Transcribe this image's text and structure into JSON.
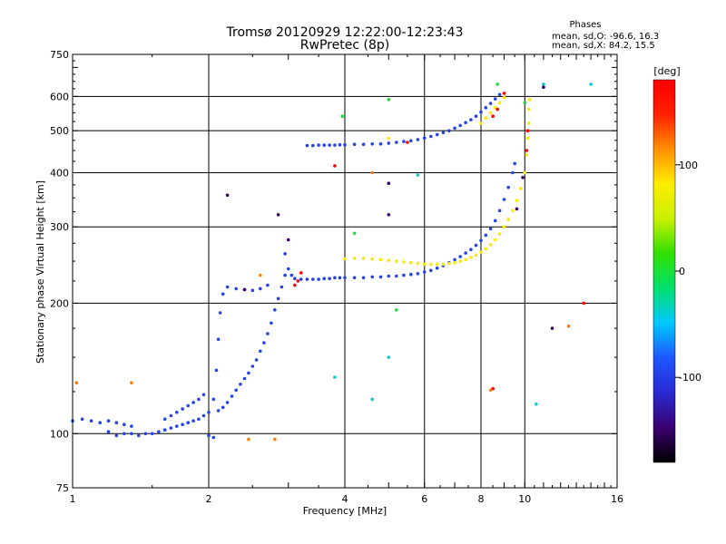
{
  "chart_data": {
    "type": "scatter",
    "title": "Tromsø 20120929 12:22:00-12:23:43",
    "subtitle": "RwPretec (8p)",
    "xlabel": "Frequency [MHz]",
    "ylabel": "Stationary phase Virtual Height [km]",
    "x_scale": "log",
    "y_scale": "log",
    "xlim": [
      1,
      16
    ],
    "ylim": [
      75,
      750
    ],
    "x_ticks": [
      1,
      2,
      4,
      6,
      8,
      10,
      16
    ],
    "x_tick_labels": [
      "1",
      "2",
      "4",
      "6",
      "8",
      "10",
      "16"
    ],
    "y_ticks": [
      75,
      100,
      200,
      300,
      400,
      500,
      600,
      750
    ],
    "y_tick_labels": [
      "75",
      "100",
      "200",
      "300",
      "400",
      "500",
      "600",
      "750"
    ],
    "grid": true,
    "phase_stats": {
      "title": "Phases",
      "line_o": "mean, sd,O: -96.6, 16.3",
      "line_x": "mean, sd,X:  84.2, 15.5"
    },
    "colorbar": {
      "label": "[deg]",
      "range": [
        -180,
        180
      ],
      "ticks": [
        100,
        0,
        -100
      ],
      "tick_labels": [
        "100",
        "0",
        "-100"
      ],
      "colormap": [
        "#000000",
        "#3a0070",
        "#2a2ad0",
        "#1e56ff",
        "#00c8ff",
        "#00e070",
        "#30e000",
        "#c8f000",
        "#ffee00",
        "#ff9000",
        "#ff2000",
        "#ff0000"
      ]
    },
    "series": [
      {
        "phase": -95,
        "points": [
          [
            1.0,
            107
          ],
          [
            1.05,
            108
          ],
          [
            1.1,
            107
          ],
          [
            1.15,
            106
          ],
          [
            1.2,
            107
          ],
          [
            1.25,
            106
          ],
          [
            1.3,
            105
          ],
          [
            1.35,
            104
          ],
          [
            1.2,
            101
          ],
          [
            1.25,
            99
          ],
          [
            1.3,
            100
          ],
          [
            1.35,
            100
          ],
          [
            1.4,
            99
          ],
          [
            1.45,
            100
          ],
          [
            1.5,
            100
          ],
          [
            1.55,
            101
          ],
          [
            1.6,
            102
          ],
          [
            1.65,
            103
          ],
          [
            1.7,
            104
          ],
          [
            1.75,
            105
          ],
          [
            1.8,
            106
          ],
          [
            1.85,
            107
          ],
          [
            1.9,
            108
          ],
          [
            1.95,
            110
          ],
          [
            2.0,
            112
          ],
          [
            2.05,
            120
          ],
          [
            2.08,
            140
          ],
          [
            2.1,
            165
          ],
          [
            2.12,
            190
          ],
          [
            2.15,
            210
          ],
          [
            2.2,
            218
          ],
          [
            2.3,
            216
          ],
          [
            2.4,
            215
          ],
          [
            2.5,
            214
          ],
          [
            2.6,
            216
          ],
          [
            2.7,
            220
          ],
          [
            1.6,
            108
          ],
          [
            1.65,
            110
          ],
          [
            1.7,
            112
          ],
          [
            1.75,
            114
          ],
          [
            1.8,
            116
          ],
          [
            1.85,
            118
          ],
          [
            1.9,
            120
          ],
          [
            1.95,
            123
          ],
          [
            2.0,
            99
          ],
          [
            2.05,
            98
          ],
          [
            2.1,
            113
          ],
          [
            2.15,
            115
          ],
          [
            2.2,
            118
          ],
          [
            2.25,
            122
          ],
          [
            2.3,
            126
          ],
          [
            2.35,
            130
          ],
          [
            2.4,
            134
          ],
          [
            2.45,
            138
          ],
          [
            2.5,
            143
          ],
          [
            2.55,
            148
          ],
          [
            2.6,
            155
          ],
          [
            2.65,
            162
          ],
          [
            2.7,
            170
          ],
          [
            2.75,
            180
          ],
          [
            2.8,
            193
          ],
          [
            2.85,
            205
          ],
          [
            2.9,
            218
          ],
          [
            2.95,
            232
          ],
          [
            2.95,
            260
          ],
          [
            3.0,
            240
          ],
          [
            3.05,
            232
          ],
          [
            3.1,
            228
          ],
          [
            3.2,
            227
          ],
          [
            3.3,
            227
          ],
          [
            3.4,
            227
          ],
          [
            3.5,
            227
          ],
          [
            3.6,
            228
          ],
          [
            3.7,
            228
          ],
          [
            3.8,
            229
          ],
          [
            3.9,
            229
          ],
          [
            4.0,
            229
          ],
          [
            4.2,
            229
          ],
          [
            4.4,
            229
          ],
          [
            4.6,
            230
          ],
          [
            4.8,
            230
          ],
          [
            5.0,
            231
          ],
          [
            5.2,
            231
          ],
          [
            5.4,
            232
          ],
          [
            5.6,
            233
          ],
          [
            5.8,
            234
          ],
          [
            6.0,
            236
          ],
          [
            6.2,
            238
          ],
          [
            6.4,
            241
          ],
          [
            6.6,
            244
          ],
          [
            6.8,
            248
          ],
          [
            7.0,
            252
          ],
          [
            7.2,
            256
          ],
          [
            7.4,
            261
          ],
          [
            7.6,
            266
          ],
          [
            7.8,
            272
          ],
          [
            8.0,
            279
          ],
          [
            8.2,
            287
          ],
          [
            8.4,
            297
          ],
          [
            8.6,
            310
          ],
          [
            8.8,
            327
          ],
          [
            9.0,
            347
          ],
          [
            9.2,
            370
          ],
          [
            9.4,
            400
          ],
          [
            9.5,
            420
          ],
          [
            3.3,
            462
          ],
          [
            3.4,
            462
          ],
          [
            3.5,
            463
          ],
          [
            3.6,
            463
          ],
          [
            3.7,
            463
          ],
          [
            3.8,
            463
          ],
          [
            3.9,
            464
          ],
          [
            4.0,
            464
          ],
          [
            4.2,
            465
          ],
          [
            4.4,
            465
          ],
          [
            4.6,
            466
          ],
          [
            4.8,
            466
          ],
          [
            5.0,
            468
          ],
          [
            5.2,
            470
          ],
          [
            5.4,
            472
          ],
          [
            5.6,
            474
          ],
          [
            5.8,
            477
          ],
          [
            6.0,
            481
          ],
          [
            6.2,
            485
          ],
          [
            6.4,
            490
          ],
          [
            6.6,
            495
          ],
          [
            6.8,
            500
          ],
          [
            7.0,
            507
          ],
          [
            7.2,
            514
          ],
          [
            7.4,
            522
          ],
          [
            7.6,
            530
          ],
          [
            7.8,
            540
          ],
          [
            8.0,
            552
          ],
          [
            8.2,
            565
          ],
          [
            8.4,
            578
          ],
          [
            8.6,
            592
          ],
          [
            8.8,
            606
          ]
        ]
      },
      {
        "phase": 84,
        "points": [
          [
            4.0,
            253
          ],
          [
            4.2,
            254
          ],
          [
            4.4,
            254
          ],
          [
            4.6,
            253
          ],
          [
            4.8,
            252
          ],
          [
            5.0,
            251
          ],
          [
            5.2,
            250
          ],
          [
            5.4,
            249
          ],
          [
            5.6,
            248
          ],
          [
            5.8,
            247
          ],
          [
            6.0,
            246
          ],
          [
            6.2,
            246
          ],
          [
            6.4,
            246
          ],
          [
            6.6,
            246
          ],
          [
            6.8,
            247
          ],
          [
            7.0,
            248
          ],
          [
            7.2,
            250
          ],
          [
            7.4,
            252
          ],
          [
            7.6,
            255
          ],
          [
            7.8,
            258
          ],
          [
            8.0,
            262
          ],
          [
            8.2,
            267
          ],
          [
            8.4,
            273
          ],
          [
            8.6,
            280
          ],
          [
            8.8,
            289
          ],
          [
            9.0,
            300
          ],
          [
            9.2,
            312
          ],
          [
            9.4,
            327
          ],
          [
            9.6,
            345
          ],
          [
            9.8,
            368
          ],
          [
            10.0,
            400
          ],
          [
            10.1,
            440
          ],
          [
            10.15,
            480
          ],
          [
            10.2,
            520
          ],
          [
            10.2,
            560
          ],
          [
            10.25,
            590
          ],
          [
            8.0,
            520
          ],
          [
            8.2,
            535
          ],
          [
            8.4,
            550
          ],
          [
            8.6,
            565
          ],
          [
            8.8,
            580
          ],
          [
            9.0,
            596
          ],
          [
            5.0,
            480
          ],
          [
            5.5,
            470
          ]
        ]
      },
      {
        "phase": 178,
        "points": [
          [
            3.1,
            220
          ],
          [
            3.15,
            225
          ],
          [
            3.2,
            235
          ],
          [
            10.1,
            450
          ],
          [
            10.15,
            500
          ],
          [
            8.5,
            540
          ],
          [
            8.7,
            560
          ],
          [
            9.0,
            610
          ],
          [
            13.5,
            200
          ],
          [
            8.5,
            127
          ],
          [
            3.8,
            415
          ],
          [
            5.5,
            470
          ]
        ]
      },
      {
        "phase": 120,
        "points": [
          [
            1.02,
            131
          ],
          [
            1.35,
            131
          ],
          [
            2.45,
            97
          ],
          [
            2.8,
            97
          ],
          [
            2.6,
            232
          ],
          [
            12.5,
            177
          ],
          [
            8.4,
            126
          ],
          [
            4.6,
            400
          ]
        ]
      },
      {
        "phase": 0,
        "points": [
          [
            3.95,
            540
          ],
          [
            5.0,
            590
          ],
          [
            5.2,
            193
          ],
          [
            4.2,
            290
          ],
          [
            8.7,
            640
          ],
          [
            10.0,
            580
          ]
        ]
      },
      {
        "phase": -40,
        "points": [
          [
            14.0,
            640
          ],
          [
            11.0,
            640
          ],
          [
            5.8,
            395
          ],
          [
            5.0,
            150
          ],
          [
            10.6,
            117
          ],
          [
            4.6,
            120
          ],
          [
            3.8,
            135
          ]
        ]
      },
      {
        "phase": -150,
        "points": [
          [
            2.85,
            320
          ],
          [
            2.2,
            355
          ],
          [
            5.0,
            320
          ],
          [
            11.0,
            630
          ],
          [
            11.5,
            175
          ],
          [
            9.6,
            330
          ],
          [
            9.9,
            390
          ],
          [
            5.0,
            378
          ],
          [
            2.4,
            215
          ],
          [
            3.0,
            280
          ]
        ]
      }
    ]
  }
}
